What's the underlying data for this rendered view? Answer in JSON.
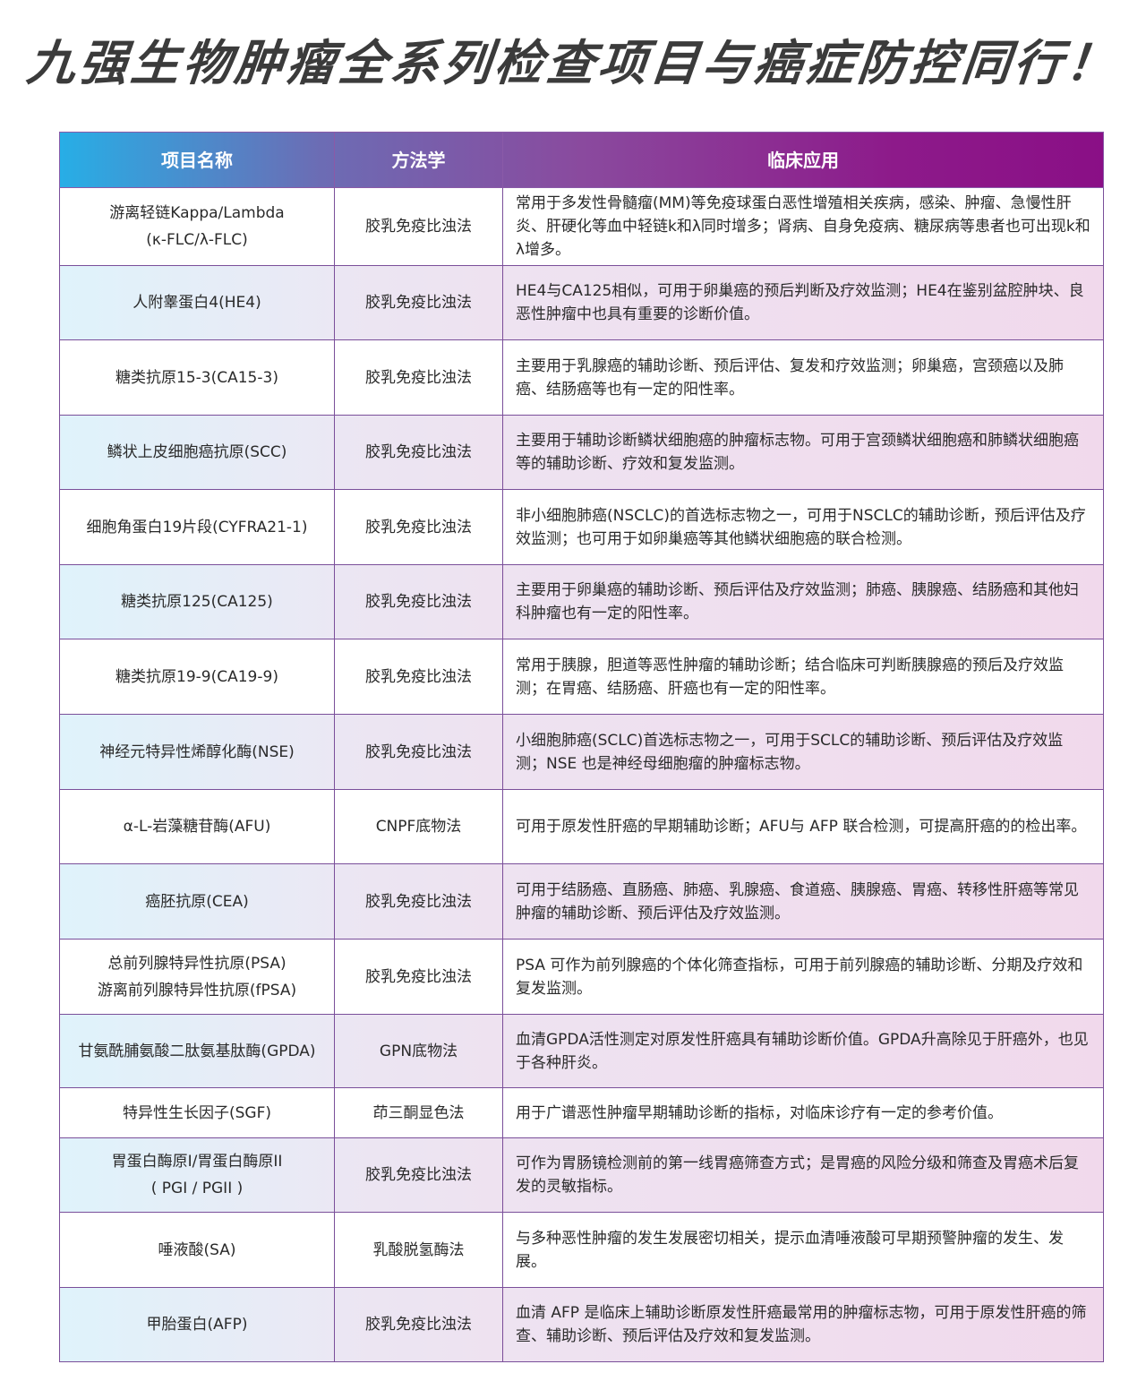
{
  "title": "九强生物肿瘤全系列检查项目与癌症防控同行！",
  "colors": {
    "header_start": "#27aee6",
    "header_end": "#8a0f86",
    "border": "#7a4f9a",
    "title": "#3b3b3b"
  },
  "table": {
    "headers": [
      "项目名称",
      "方法学",
      "临床应用"
    ],
    "rows": [
      {
        "name": "游离轻链Kappa/Lambda",
        "name2": "(κ-FLC/λ-FLC)",
        "method": "胶乳免疫比浊法",
        "desc": "常用于多发性骨髓瘤(MM)等免疫球蛋白恶性增殖相关疾病，感染、肿瘤、急慢性肝炎、肝硬化等血中轻链k和λ同时增多；肾病、自身免疫病、糖尿病等患者也可出现k和λ增多。"
      },
      {
        "name": "人附睾蛋白4(HE4)",
        "method": "胶乳免疫比浊法",
        "desc": "HE4与CA125相似，可用于卵巢癌的预后判断及疗效监测；HE4在鉴别盆腔肿块、良恶性肿瘤中也具有重要的诊断价值。"
      },
      {
        "name": "糖类抗原15-3(CA15-3)",
        "method": "胶乳免疫比浊法",
        "desc": "主要用于乳腺癌的辅助诊断、预后评估、复发和疗效监测；卵巢癌，宫颈癌以及肺癌、结肠癌等也有一定的阳性率。"
      },
      {
        "name": "鳞状上皮细胞癌抗原(SCC)",
        "method": "胶乳免疫比浊法",
        "desc": "主要用于辅助诊断鳞状细胞癌的肿瘤标志物。可用于宫颈鳞状细胞癌和肺鳞状细胞癌等的辅助诊断、疗效和复发监测。"
      },
      {
        "name": "细胞角蛋白19片段(CYFRA21-1)",
        "method": "胶乳免疫比浊法",
        "desc": "非小细胞肺癌(NSCLC)的首选标志物之一，可用于NSCLC的辅助诊断，预后评估及疗效监测；也可用于如卵巢癌等其他鳞状细胞癌的联合检测。"
      },
      {
        "name": "糖类抗原125(CA125)",
        "method": "胶乳免疫比浊法",
        "desc": "主要用于卵巢癌的辅助诊断、预后评估及疗效监测；肺癌、胰腺癌、结肠癌和其他妇科肿瘤也有一定的阳性率。"
      },
      {
        "name": "糖类抗原19-9(CA19-9)",
        "method": "胶乳免疫比浊法",
        "desc": "常用于胰腺，胆道等恶性肿瘤的辅助诊断；结合临床可判断胰腺癌的预后及疗效监测；在胃癌、结肠癌、肝癌也有一定的阳性率。"
      },
      {
        "name": "神经元特异性烯醇化酶(NSE)",
        "method": "胶乳免疫比浊法",
        "desc": "小细胞肺癌(SCLC)首选标志物之一，可用于SCLC的辅助诊断、预后评估及疗效监测；NSE 也是神经母细胞瘤的肿瘤标志物。"
      },
      {
        "name": "α-L-岩藻糖苷酶(AFU)",
        "method": "CNPF底物法",
        "desc": "可用于原发性肝癌的早期辅助诊断；AFU与 AFP 联合检测，可提高肝癌的的检出率。"
      },
      {
        "name": "癌胚抗原(CEA)",
        "method": "胶乳免疫比浊法",
        "desc": "可用于结肠癌、直肠癌、肺癌、乳腺癌、食道癌、胰腺癌、胃癌、转移性肝癌等常见肿瘤的辅助诊断、预后评估及疗效监测。"
      },
      {
        "name": "总前列腺特异性抗原(PSA)",
        "name2": "游离前列腺特异性抗原(fPSA)",
        "method": "胶乳免疫比浊法",
        "desc": "PSA 可作为前列腺癌的个体化筛查指标，可用于前列腺癌的辅助诊断、分期及疗效和复发监测。"
      },
      {
        "name": "甘氨酰脯氨酸二肽氨基肽酶(GPDA)",
        "method": "GPN底物法",
        "desc": "血清GPDA活性测定对原发性肝癌具有辅助诊断价值。GPDA升高除见于肝癌外，也见于各种肝炎。"
      },
      {
        "name": "特异性生长因子(SGF)",
        "method": "茚三酮显色法",
        "desc": "用于广谱恶性肿瘤早期辅助诊断的指标，对临床诊疗有一定的参考价值。"
      },
      {
        "name": "胃蛋白酶原I/胃蛋白酶原II",
        "name2": "( PGI / PGII )",
        "method": "胶乳免疫比浊法",
        "desc": "可作为胃肠镜检测前的第一线胃癌筛查方式；是胃癌的风险分级和筛查及胃癌术后复发的灵敏指标。"
      },
      {
        "name": "唾液酸(SA)",
        "method": "乳酸脱氢酶法",
        "desc": "与多种恶性肿瘤的发生发展密切相关，提示血清唾液酸可早期预警肿瘤的发生、发展。"
      },
      {
        "name": "甲胎蛋白(AFP)",
        "method": "胶乳免疫比浊法",
        "desc": "血清 AFP 是临床上辅助诊断原发性肝癌最常用的肿瘤标志物，可用于原发性肝癌的筛查、辅助诊断、预后评估及疗效和复发监测。"
      }
    ]
  }
}
